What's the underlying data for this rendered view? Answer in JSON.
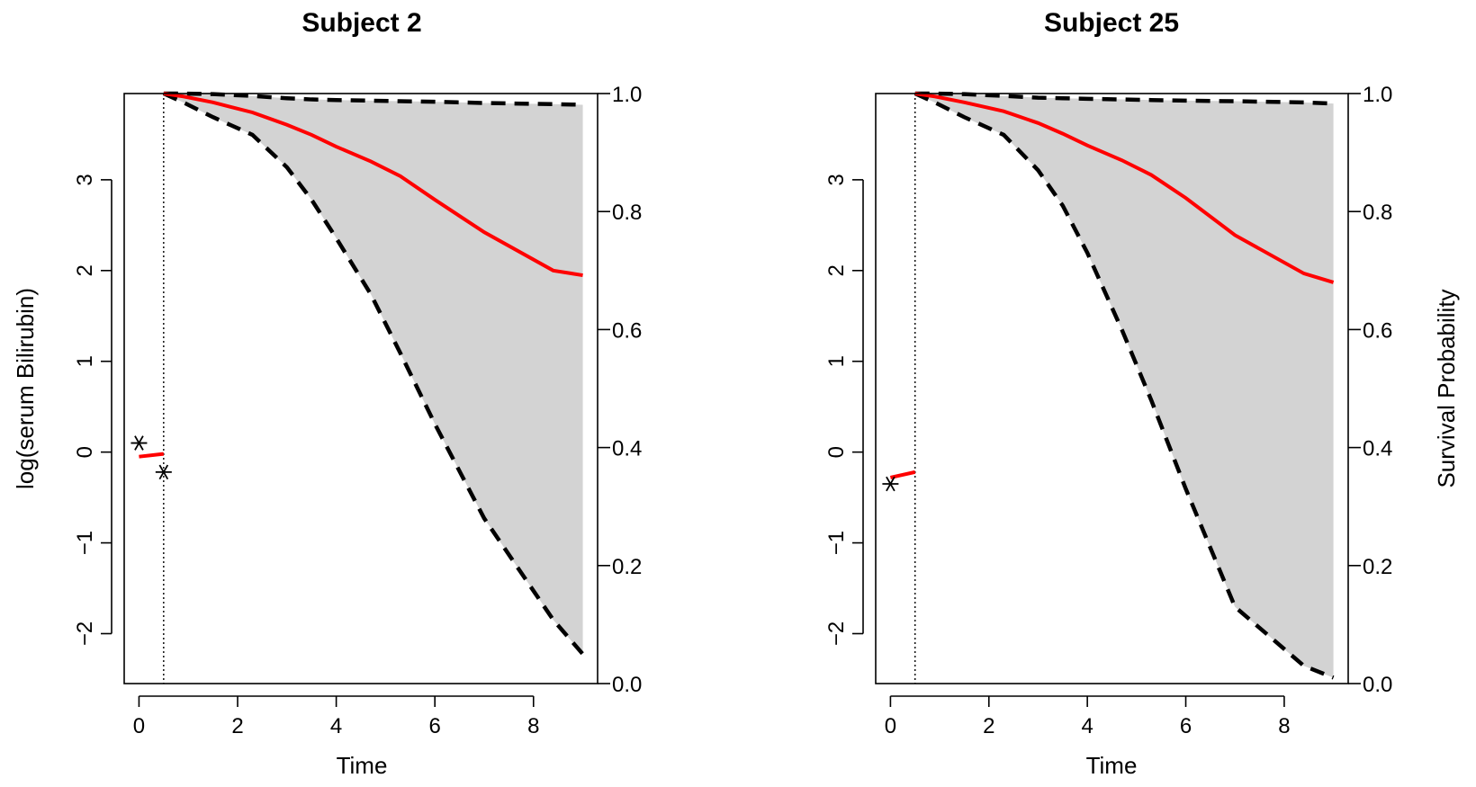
{
  "colors": {
    "band": "#d3d3d3",
    "mean_line": "#ff0000",
    "ci_line": "#000000",
    "observed": "#000000",
    "cutoff": "#000000"
  },
  "chart_data": [
    {
      "type": "line",
      "title": "Subject 2",
      "xlabel": "Time",
      "ylabel": "log(serum Bilirubin)",
      "y2label": "",
      "xlim": [
        -0.3,
        9.3
      ],
      "ylim": [
        -2.55,
        3.95
      ],
      "y2lim": [
        0.0,
        1.0
      ],
      "x_ticks": [
        "0",
        "2",
        "4",
        "6",
        "8"
      ],
      "y_ticks": [
        "-2",
        "-1",
        "0",
        "1",
        "2",
        "3"
      ],
      "y2_ticks": [
        "0.0",
        "0.2",
        "0.4",
        "0.6",
        "0.8",
        "1.0"
      ],
      "last_visit_time": 0.5,
      "observed_points": {
        "x": [
          0.0,
          0.5
        ],
        "y": [
          0.1,
          -0.22
        ]
      },
      "longitudinal_fit": {
        "x": [
          0.0,
          0.5
        ],
        "y": [
          -0.05,
          -0.02
        ]
      },
      "survival": {
        "x": [
          0.5,
          0.9,
          1.5,
          2.3,
          3.0,
          3.5,
          4.0,
          4.7,
          5.3,
          6.0,
          7.0,
          8.4,
          9.0
        ],
        "mean": [
          1.0,
          0.995,
          0.985,
          0.968,
          0.947,
          0.93,
          0.91,
          0.885,
          0.86,
          0.82,
          0.765,
          0.7,
          0.692
        ],
        "lower": [
          1.0,
          0.985,
          0.96,
          0.93,
          0.875,
          0.82,
          0.755,
          0.66,
          0.56,
          0.44,
          0.28,
          0.108,
          0.05
        ],
        "upper": [
          1.0,
          1.0,
          0.999,
          0.996,
          0.992,
          0.99,
          0.989,
          0.988,
          0.987,
          0.986,
          0.984,
          0.982,
          0.981
        ]
      }
    },
    {
      "type": "line",
      "title": "Subject 25",
      "xlabel": "Time",
      "ylabel": "",
      "y2label": "Survival Probability",
      "xlim": [
        -0.3,
        9.3
      ],
      "ylim": [
        -2.55,
        3.95
      ],
      "y2lim": [
        0.0,
        1.0
      ],
      "x_ticks": [
        "0",
        "2",
        "4",
        "6",
        "8"
      ],
      "y_ticks": [
        "-2",
        "-1",
        "0",
        "1",
        "2",
        "3"
      ],
      "y2_ticks": [
        "0.0",
        "0.2",
        "0.4",
        "0.6",
        "0.8",
        "1.0"
      ],
      "last_visit_time": 0.5,
      "observed_points": {
        "x": [
          0.0
        ],
        "y": [
          -0.35
        ]
      },
      "longitudinal_fit": {
        "x": [
          0.0,
          0.5
        ],
        "y": [
          -0.28,
          -0.22
        ]
      },
      "survival": {
        "x": [
          0.5,
          0.9,
          1.5,
          2.3,
          3.0,
          3.5,
          4.0,
          4.7,
          5.3,
          6.0,
          7.0,
          8.4,
          9.0
        ],
        "mean": [
          1.0,
          0.995,
          0.985,
          0.97,
          0.95,
          0.932,
          0.912,
          0.887,
          0.862,
          0.823,
          0.76,
          0.695,
          0.68
        ],
        "lower": [
          1.0,
          0.985,
          0.96,
          0.93,
          0.87,
          0.81,
          0.73,
          0.6,
          0.48,
          0.33,
          0.13,
          0.03,
          0.01
        ],
        "upper": [
          1.0,
          1.0,
          0.999,
          0.996,
          0.993,
          0.992,
          0.991,
          0.99,
          0.989,
          0.988,
          0.987,
          0.985,
          0.983
        ]
      }
    }
  ]
}
